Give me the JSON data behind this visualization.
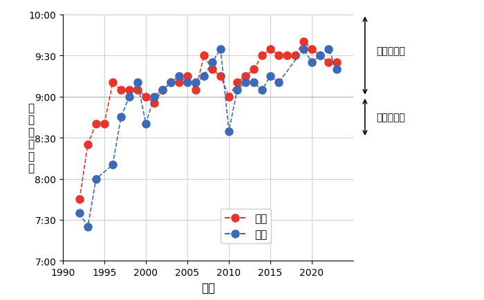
{
  "world_years": [
    1992,
    1993,
    1994,
    1995,
    1996,
    1997,
    1998,
    1999,
    2000,
    2001,
    2002,
    2003,
    2004,
    2005,
    2006,
    2007,
    2008,
    2009,
    2010,
    2011,
    2012,
    2013,
    2014,
    2015,
    2016,
    2017,
    2018,
    2019,
    2020,
    2021,
    2022,
    2023
  ],
  "world_values": [
    7.75,
    8.42,
    8.67,
    8.67,
    9.17,
    9.08,
    9.08,
    9.08,
    9.0,
    8.92,
    9.08,
    9.17,
    9.17,
    9.25,
    9.08,
    9.5,
    9.33,
    9.25,
    9.0,
    9.17,
    9.25,
    9.33,
    9.5,
    9.58,
    9.5,
    9.5,
    9.5,
    9.67,
    9.58,
    9.5,
    9.42,
    9.42
  ],
  "japan_years": [
    1992,
    1993,
    1994,
    1996,
    1997,
    1998,
    1999,
    2000,
    2001,
    2002,
    2003,
    2004,
    2005,
    2006,
    2007,
    2008,
    2009,
    2010,
    2011,
    2012,
    2013,
    2014,
    2015,
    2016,
    2019,
    2020,
    2021,
    2022,
    2023
  ],
  "japan_values": [
    7.58,
    7.42,
    8.0,
    8.17,
    8.75,
    9.0,
    9.17,
    8.67,
    9.0,
    9.08,
    9.17,
    9.25,
    9.17,
    9.17,
    9.25,
    9.42,
    9.58,
    8.58,
    9.08,
    9.17,
    9.17,
    9.08,
    9.25,
    9.17,
    9.58,
    9.42,
    9.5,
    9.58,
    9.33
  ],
  "world_color": "#e8342a",
  "japan_color": "#3c6ab5",
  "ylim_min": 7.0,
  "ylim_max": 10.0,
  "xlim_min": 1990,
  "xlim_max": 2025,
  "yticks": [
    7.0,
    7.5,
    8.0,
    8.5,
    9.0,
    9.5,
    10.0
  ],
  "ytick_labels": [
    "7:00",
    "7:30",
    "8:00",
    "8:30",
    "9:00",
    "9:30",
    "10:00"
  ],
  "xticks": [
    1990,
    1995,
    2000,
    2005,
    2010,
    2015,
    2020
  ],
  "xlabel": "年度",
  "ylabel": "環境危機時刻",
  "legend_world": "世界",
  "legend_japan": "日本",
  "annotation_top": "極めて不安",
  "annotation_bottom": "かなり不安",
  "boundary_y": 9.0,
  "marker_size": 8
}
